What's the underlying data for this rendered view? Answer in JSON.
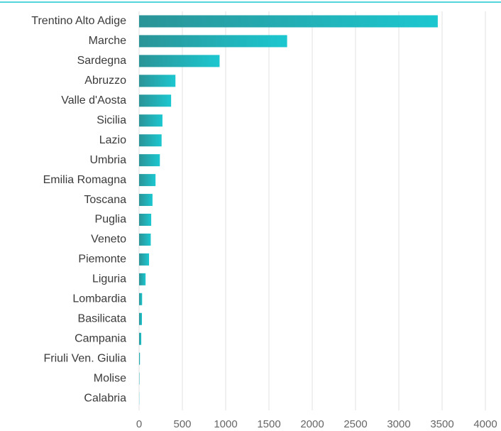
{
  "chart_data": {
    "type": "bar",
    "orientation": "horizontal",
    "categories": [
      "Trentino Alto Adige",
      "Marche",
      "Sardegna",
      "Abruzzo",
      "Valle d'Aosta",
      "Sicilia",
      "Lazio",
      "Umbria",
      "Emilia Romagna",
      "Toscana",
      "Puglia",
      "Veneto",
      "Piemonte",
      "Liguria",
      "Lombardia",
      "Basilicata",
      "Campania",
      "Friuli Ven. Giulia",
      "Molise",
      "Calabria"
    ],
    "values": [
      3450,
      1710,
      930,
      420,
      370,
      270,
      260,
      240,
      190,
      155,
      140,
      135,
      115,
      75,
      35,
      33,
      25,
      10,
      4,
      2
    ],
    "color": [
      "#2a9497",
      "#1cc7d0"
    ],
    "xlim": [
      0,
      4000
    ],
    "xticks": [
      0,
      500,
      1000,
      1500,
      2000,
      2500,
      3000,
      3500,
      4000
    ],
    "grid": true
  }
}
